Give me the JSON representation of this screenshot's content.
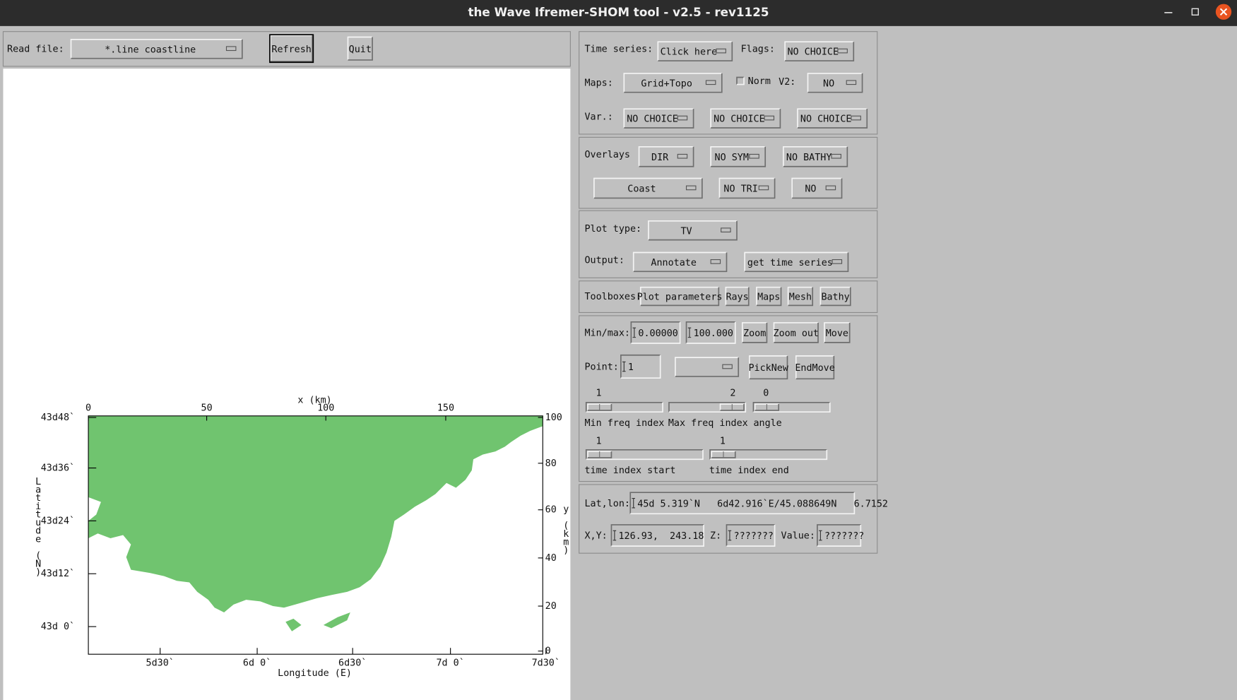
{
  "window": {
    "title": "the Wave Ifremer-SHOM tool - v2.5 - rev1125"
  },
  "file_bar": {
    "label": "Read file:",
    "file_menu": "*.line coastline",
    "buttons": [
      "Refresh",
      "Quit"
    ]
  },
  "plot": {
    "x_label": "x (km)",
    "x_ticks": [
      0,
      50,
      100,
      150
    ],
    "lat_label": "Latitude (N)",
    "lat_ticks": [
      "43d48`",
      "43d36`",
      "43d24`",
      "43d12`",
      "43d 0`"
    ],
    "y_label": "y (km)",
    "y_ticks": [
      100,
      80,
      60,
      40,
      20,
      0
    ],
    "lon_label": "Longitude (E)",
    "lon_ticks": [
      "5d30`",
      "6d 0`",
      "6d30`",
      "7d 0`",
      "7d30`"
    ]
  },
  "controls": {
    "time_series": {
      "label": "Time series:",
      "menu": "Click here"
    },
    "flags": {
      "label": "Flags:",
      "menu": "NO CHOICE"
    },
    "maps": {
      "label": "Maps:",
      "menu": "Grid+Topo",
      "norm": "Norm",
      "v2_label": "V2:",
      "v2_menu": "NO"
    },
    "var": {
      "label": "Var.:",
      "menus": [
        "NO CHOICE",
        "NO CHOICE",
        "NO CHOICE"
      ]
    },
    "overlays": {
      "label": "Overlays",
      "menus": [
        "DIR",
        "NO SYM",
        "NO BATHY",
        "Coast",
        "NO TRI",
        "NO"
      ]
    },
    "plot_type": {
      "label": "Plot type:",
      "menu": "TV"
    },
    "output": {
      "label": "Output:",
      "menus": [
        "Annotate",
        "get time series"
      ]
    },
    "toolboxes": {
      "label": "Toolboxes:",
      "buttons": [
        "Plot parameters",
        "Rays",
        "Maps",
        "Mesh",
        "Bathy"
      ]
    },
    "min_max": {
      "label": "Min/max:",
      "inputs": [
        "0.00000",
        "100.000"
      ],
      "buttons": [
        "Zoom",
        "Zoom out",
        "Move"
      ]
    },
    "point": {
      "label": "Point:",
      "input": "1",
      "buttons": [
        "PickNew",
        "EndMove"
      ]
    },
    "sliders": [
      {
        "value": 1,
        "label": "Min freq index"
      },
      {
        "value": 2,
        "label": "Max freq index"
      },
      {
        "value": 0,
        "label": "angle"
      },
      {
        "value": 1,
        "label": "time index start"
      },
      {
        "value": 1,
        "label": "time index end"
      }
    ],
    "lat_lon": {
      "label": "Lat,lon:",
      "input": "45d 5.319`N   6d42.916`E/45.088649N   6.7152"
    },
    "xy": {
      "label": "X,Y:",
      "input": "126.93,  243.18"
    },
    "z": {
      "label": "Z:",
      "input": "???????"
    },
    "value": {
      "label": "Value:",
      "input": "???????"
    }
  }
}
